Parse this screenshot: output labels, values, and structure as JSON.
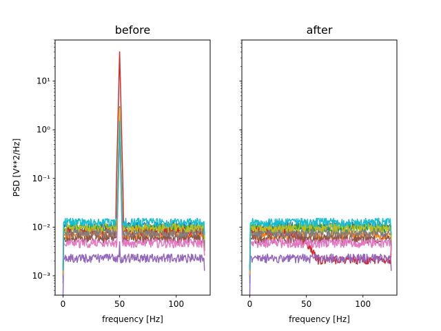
{
  "chart_data": [
    {
      "type": "line",
      "title": "before",
      "xlabel": "frequency [Hz]",
      "ylabel": "PSD [V**2/Hz]",
      "xlim": [
        -7,
        130
      ],
      "ylim": [
        0.0004,
        70
      ],
      "yscale": "log",
      "xticks": [
        0,
        50,
        100
      ],
      "yticks": [
        0.001,
        0.01,
        0.1,
        1,
        10
      ],
      "ytick_labels": [
        "10⁻³",
        "10⁻²",
        "10⁻¹",
        "10⁰",
        "10¹"
      ],
      "grid": false,
      "series": [
        {
          "color": "#1f77b4",
          "level": 0.0105,
          "start": 0.0007,
          "peak": 1.4
        },
        {
          "color": "#ff7f0e",
          "level": 0.0068,
          "start": 0.0012,
          "peak": 2.0
        },
        {
          "color": "#2ca02c",
          "level": 0.0095,
          "start": 0.0009,
          "peak": 3.0
        },
        {
          "color": "#d62728",
          "level": 0.0082,
          "start": 0.0015,
          "peak": 40
        },
        {
          "color": "#9467bd",
          "level": 0.0023,
          "start": 0.0004,
          "peak": 0.005
        },
        {
          "color": "#8c564b",
          "level": 0.0058,
          "start": 0.001,
          "peak": 1.2
        },
        {
          "color": "#e377c2",
          "level": 0.0047,
          "start": 0.001,
          "peak": 0.9
        },
        {
          "color": "#7f7f7f",
          "level": 0.0076,
          "start": 0.0012,
          "peak": 2.4
        },
        {
          "color": "#bcbd22",
          "level": 0.0098,
          "start": 0.0011,
          "peak": 2.8
        },
        {
          "color": "#17becf",
          "level": 0.0125,
          "start": 0.0013,
          "peak": 1.5
        }
      ]
    },
    {
      "type": "line",
      "title": "after",
      "xlabel": "frequency [Hz]",
      "ylabel": "",
      "xlim": [
        -7,
        130
      ],
      "ylim": [
        0.0004,
        70
      ],
      "yscale": "log",
      "xticks": [
        0,
        50,
        100
      ],
      "yticks": [
        0.001,
        0.01,
        0.1,
        1,
        10
      ],
      "grid": false,
      "series": [
        {
          "color": "#1f77b4",
          "level": 0.0105,
          "start": 0.0007
        },
        {
          "color": "#ff7f0e",
          "level": 0.0068,
          "start": 0.0012
        },
        {
          "color": "#2ca02c",
          "level": 0.0095,
          "start": 0.0009
        },
        {
          "color": "#d62728",
          "level": 0.0082,
          "start": 0.0015,
          "drop_to": 0.0021
        },
        {
          "color": "#9467bd",
          "level": 0.0023,
          "start": 0.0004
        },
        {
          "color": "#8c564b",
          "level": 0.0058,
          "start": 0.001
        },
        {
          "color": "#e377c2",
          "level": 0.0047,
          "start": 0.001
        },
        {
          "color": "#7f7f7f",
          "level": 0.0076,
          "start": 0.0012
        },
        {
          "color": "#bcbd22",
          "level": 0.0098,
          "start": 0.0011
        },
        {
          "color": "#17becf",
          "level": 0.0125,
          "start": 0.0013
        }
      ]
    }
  ]
}
